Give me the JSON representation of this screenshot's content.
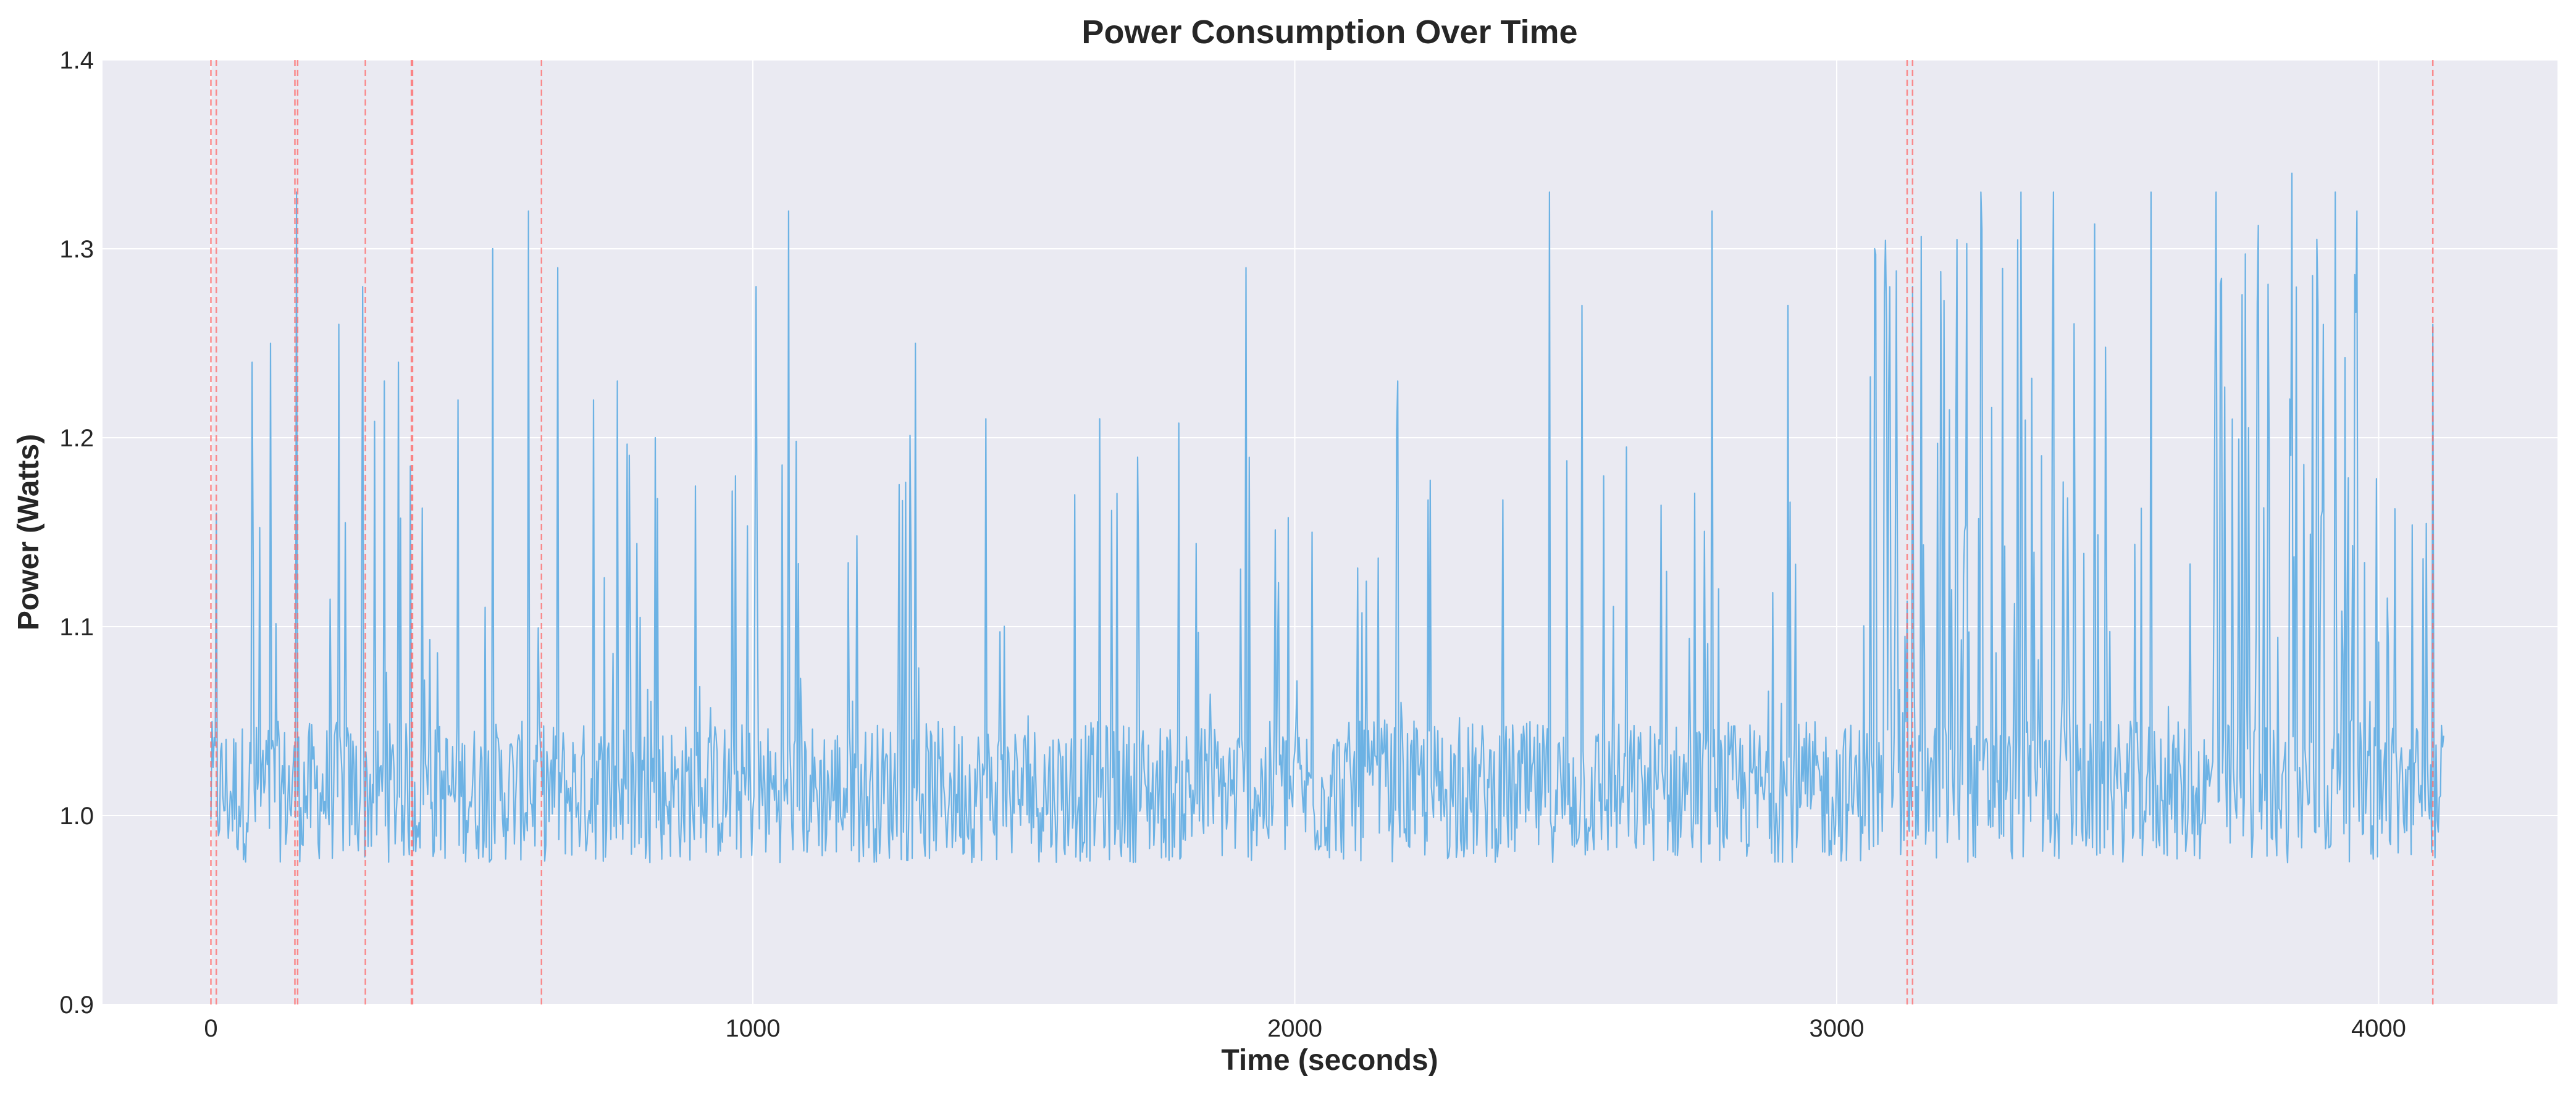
{
  "chart_data": {
    "type": "line",
    "title": "Power Consumption Over Time",
    "xlabel": "Time (seconds)",
    "ylabel": "Power (Watts)",
    "xlim": [
      -200,
      4330
    ],
    "ylim": [
      0.9,
      1.4
    ],
    "x_ticks": [
      0,
      1000,
      2000,
      3000,
      4000
    ],
    "y_ticks": [
      0.9,
      1.0,
      1.1,
      1.2,
      1.3,
      1.4
    ],
    "x_tick_labels": [
      "0",
      "1000",
      "2000",
      "3000",
      "4000"
    ],
    "y_tick_labels": [
      "0.9",
      "1.0",
      "1.1",
      "1.2",
      "1.3",
      "1.4"
    ],
    "grid": true,
    "legend": "none",
    "series": [
      {
        "color": "#6cb2e4",
        "x_range": [
          0,
          4120
        ],
        "baseline": 0.975,
        "typical_range": [
          0.975,
          1.05
        ],
        "peaks": [
          {
            "x": 10,
            "y": 1.16
          },
          {
            "x": 75,
            "y": 1.24
          },
          {
            "x": 110,
            "y": 1.25
          },
          {
            "x": 158,
            "y": 1.33
          },
          {
            "x": 235,
            "y": 1.26
          },
          {
            "x": 280,
            "y": 1.28
          },
          {
            "x": 320,
            "y": 1.23
          },
          {
            "x": 345,
            "y": 1.24
          },
          {
            "x": 455,
            "y": 1.22
          },
          {
            "x": 520,
            "y": 1.3
          },
          {
            "x": 585,
            "y": 1.32
          },
          {
            "x": 640,
            "y": 1.29
          },
          {
            "x": 705,
            "y": 1.22
          },
          {
            "x": 750,
            "y": 1.23
          },
          {
            "x": 820,
            "y": 1.2
          },
          {
            "x": 1005,
            "y": 1.28
          },
          {
            "x": 1065,
            "y": 1.32
          },
          {
            "x": 1300,
            "y": 1.25
          },
          {
            "x": 1430,
            "y": 1.21
          },
          {
            "x": 1640,
            "y": 1.21
          },
          {
            "x": 1910,
            "y": 1.29
          },
          {
            "x": 2190,
            "y": 1.23
          },
          {
            "x": 2470,
            "y": 1.33
          },
          {
            "x": 2530,
            "y": 1.27
          },
          {
            "x": 2770,
            "y": 1.32
          },
          {
            "x": 2910,
            "y": 1.27
          },
          {
            "x": 3070,
            "y": 1.3
          },
          {
            "x": 3140,
            "y": 1.28
          },
          {
            "x": 3265,
            "y": 1.33
          },
          {
            "x": 3340,
            "y": 1.33
          },
          {
            "x": 3400,
            "y": 1.33
          },
          {
            "x": 3580,
            "y": 1.33
          },
          {
            "x": 3700,
            "y": 1.33
          },
          {
            "x": 3840,
            "y": 1.34
          },
          {
            "x": 3920,
            "y": 1.33
          },
          {
            "x": 3960,
            "y": 1.32
          },
          {
            "x": 4100,
            "y": 1.26
          }
        ]
      }
    ],
    "vlines": {
      "color": "#ff6b6b",
      "style": "dashed",
      "x": [
        0,
        10,
        155,
        160,
        285,
        370,
        372,
        610,
        3130,
        3140,
        4100
      ]
    }
  }
}
